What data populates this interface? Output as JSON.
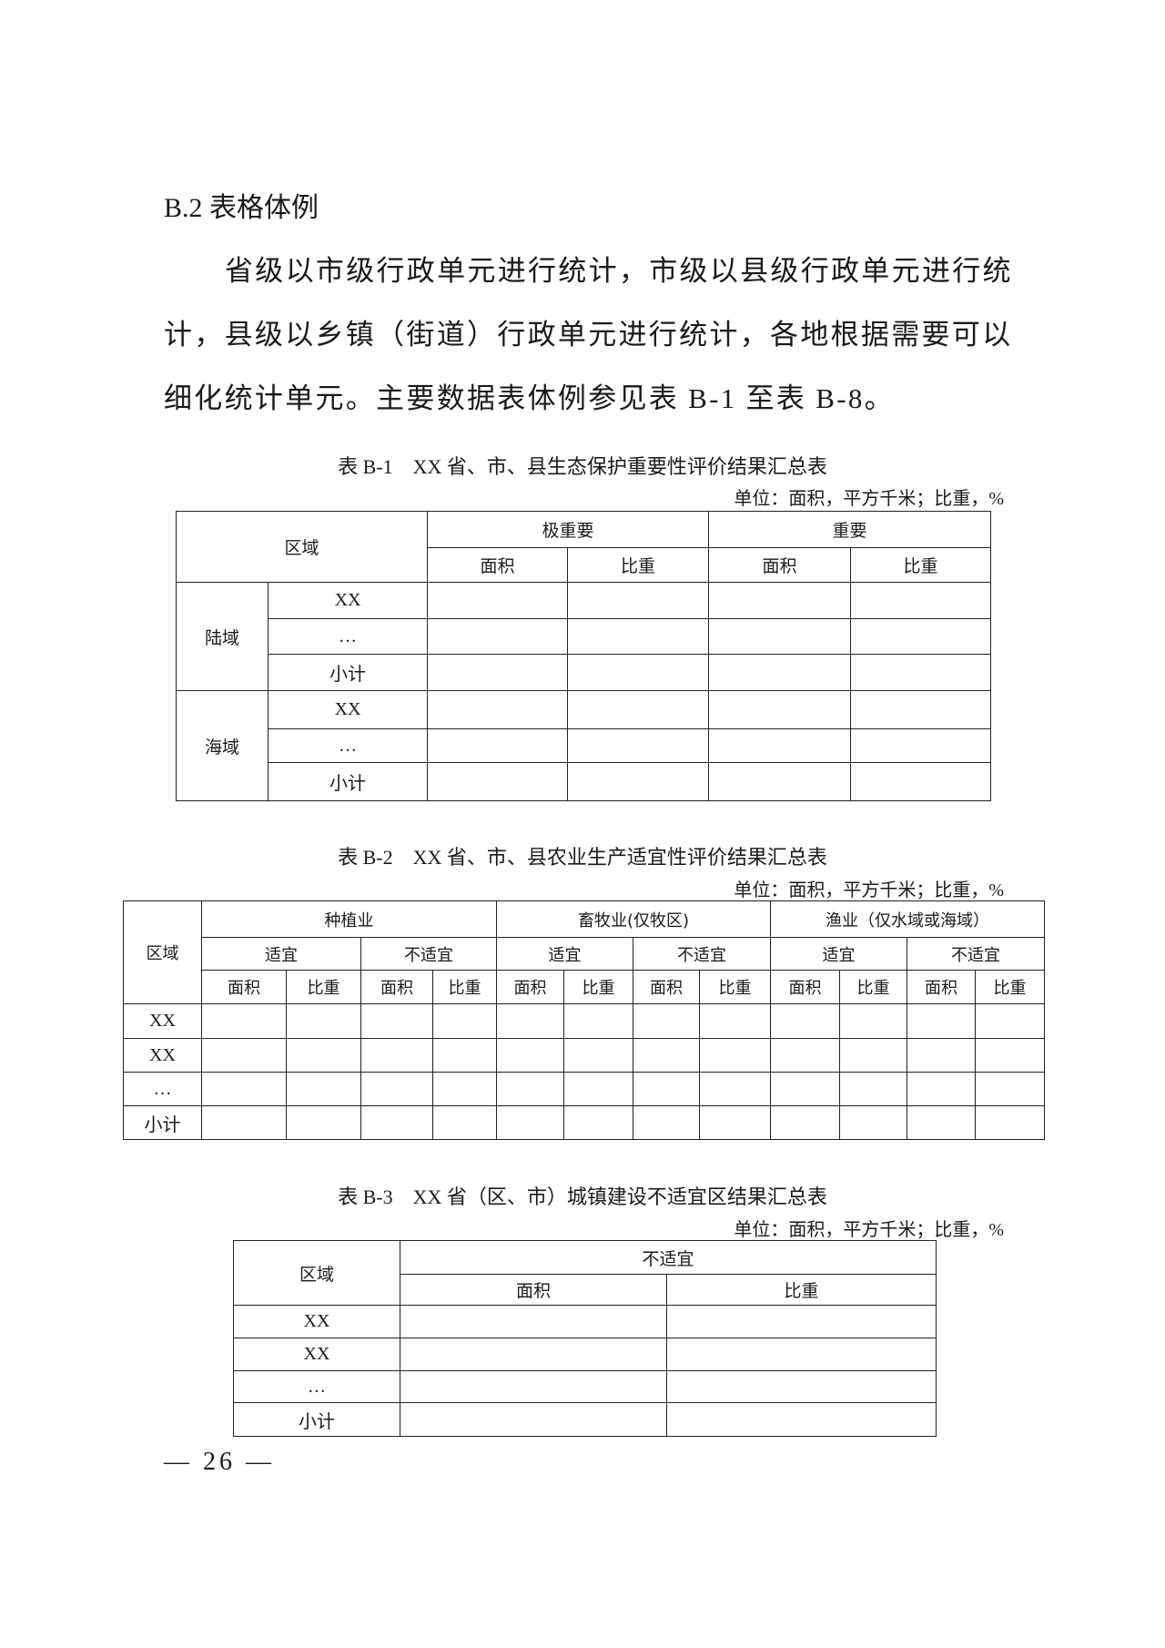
{
  "heading": "B.2 表格体例",
  "paragraph_lines": [
    "省级以市级行政单元进行统计，市级以县级行政单元进行统",
    "计，县级以乡镇（街道）行政单元进行统计，各地根据需要可以",
    "细化统计单元。主要数据表体例参见表 B-1 至表 B-8。"
  ],
  "unit_note": "单位：面积，平方千米；比重，%",
  "table_b1": {
    "caption": "表 B-1　XX 省、市、县生态保护重要性评价结果汇总表",
    "region_header": "区域",
    "groups": [
      "极重要",
      "重要"
    ],
    "sub": [
      "面积",
      "比重"
    ],
    "sections": [
      {
        "name": "陆域",
        "rows": [
          "XX",
          "…",
          "小计"
        ]
      },
      {
        "name": "海域",
        "rows": [
          "XX",
          "…",
          "小计"
        ]
      }
    ]
  },
  "table_b2": {
    "caption": "表 B-2　XX 省、市、县农业生产适宜性评价结果汇总表",
    "region_header": "区域",
    "groups": [
      "种植业",
      "畜牧业(仅牧区)",
      "渔业（仅水域或海域）"
    ],
    "suit": [
      "适宜",
      "不适宜"
    ],
    "sub": [
      "面积",
      "比重"
    ],
    "rows": [
      "XX",
      "XX",
      "…",
      "小计"
    ]
  },
  "table_b3": {
    "caption": "表 B-3　XX 省（区、市）城镇建设不适宜区结果汇总表",
    "region_header": "区域",
    "group": "不适宜",
    "sub": [
      "面积",
      "比重"
    ],
    "rows": [
      "XX",
      "XX",
      "…",
      "小计"
    ]
  },
  "page_number": "— 26 —"
}
